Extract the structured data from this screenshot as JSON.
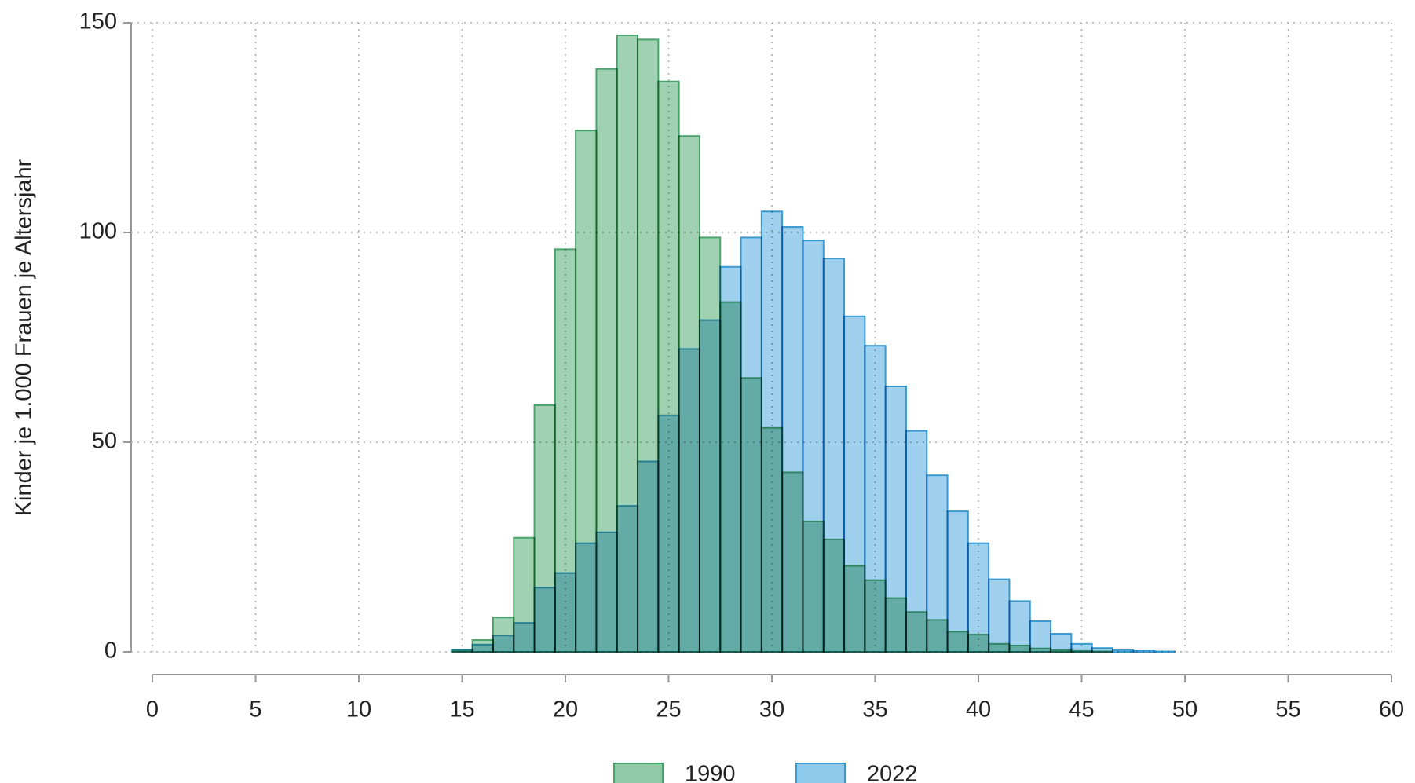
{
  "chart_data": {
    "type": "bar",
    "ylabel": "Kinder je 1.000 Frauen je Altersjahr",
    "x": [
      15,
      16,
      17,
      18,
      19,
      20,
      21,
      22,
      23,
      24,
      25,
      26,
      27,
      28,
      29,
      30,
      31,
      32,
      33,
      34,
      35,
      36,
      37,
      38,
      39,
      40,
      41,
      42,
      43,
      44,
      45,
      46,
      47,
      48,
      49
    ],
    "series": [
      {
        "name": "1990",
        "color": "#8fc9a6",
        "edgecolor": "#4aa36b",
        "values": [
          0.3,
          2.8,
          8.2,
          27.2,
          58.8,
          96,
          124.3,
          139,
          147,
          146,
          136,
          123,
          98.8,
          83.4,
          65.3,
          53.4,
          42.8,
          31.1,
          26.8,
          20.5,
          17.1,
          12.8,
          9.5,
          7.6,
          4.8,
          4.1,
          1.9,
          1.5,
          0.8,
          0.4,
          0.2,
          0.1,
          0,
          0,
          0
        ]
      },
      {
        "name": "2022",
        "color": "#8ec8ea",
        "edgecolor": "#3a9ad0",
        "values": [
          0.5,
          1.7,
          3.9,
          6.9,
          15.3,
          18.8,
          25.9,
          28.5,
          34.8,
          45.4,
          56.4,
          72.2,
          79.1,
          91.8,
          98.8,
          105,
          101.3,
          98.1,
          93.8,
          80,
          73,
          63.3,
          52.7,
          42.1,
          33.5,
          25.9,
          17.3,
          12.1,
          7.3,
          4.3,
          1.9,
          0.9,
          0.4,
          0.2,
          0.1
        ]
      }
    ],
    "xlim": [
      0,
      60
    ],
    "xticks": [
      0,
      5,
      10,
      15,
      20,
      25,
      30,
      35,
      40,
      45,
      50,
      55,
      60
    ],
    "ylim": [
      0,
      150
    ],
    "yticks": [
      0,
      50,
      100,
      150
    ],
    "grid": true,
    "legend": "bottom"
  }
}
